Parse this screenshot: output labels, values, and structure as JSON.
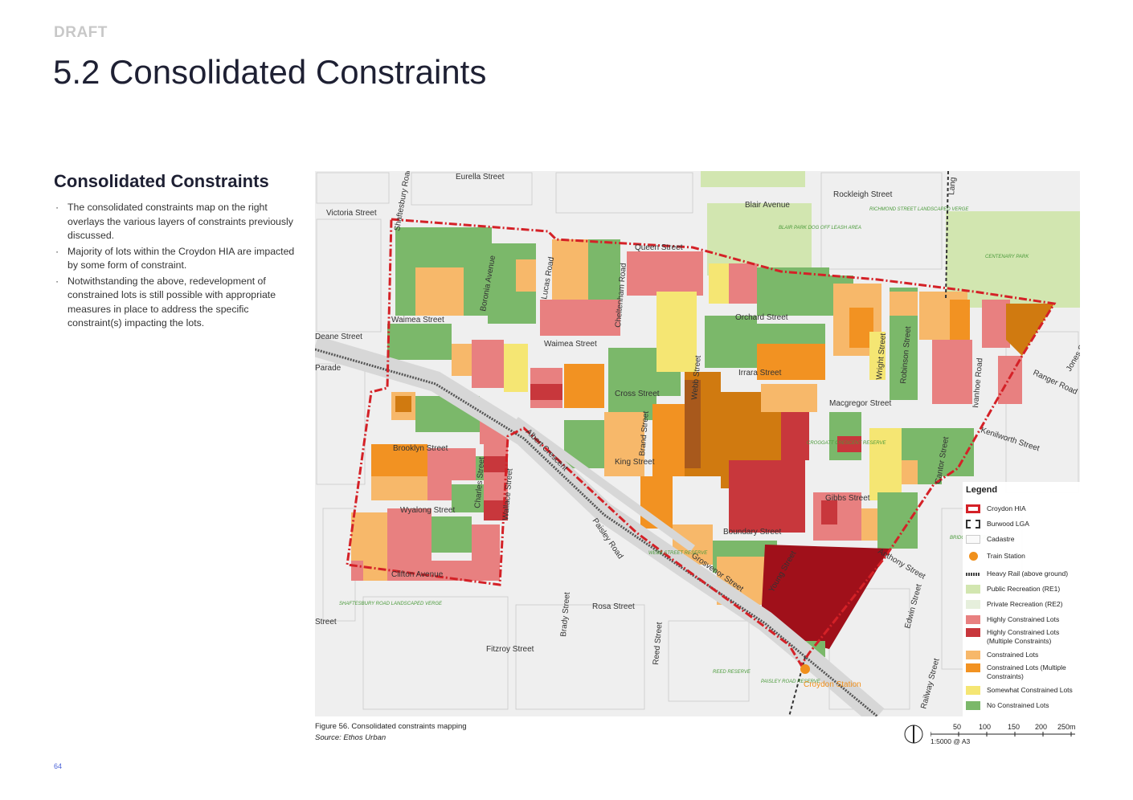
{
  "header": {
    "draft": "DRAFT",
    "title": "5.2 Consolidated Constraints"
  },
  "section": {
    "subtitle": "Consolidated Constraints",
    "bullets": [
      "The consolidated constraints map on the right overlays the various layers of constraints previously discussed.",
      "Majority of lots within the Croydon HIA are impacted by some form of constraint.",
      "Notwithstanding the above, redevelopment of constrained lots is still possible with appropriate measures in place to address the specific constraint(s) impacting the lots."
    ]
  },
  "map": {
    "streets": [
      "Eurella Street",
      "Victoria Street",
      "Shaftesbury Road",
      "Queen Street",
      "Blair Avenue",
      "Rockleigh Street",
      "Boronia Avenue",
      "Lucas Road",
      "Cheltenham Road",
      "Orchard Street",
      "Waimea Street",
      "Waimea Street",
      "Deane Street",
      "Parade",
      "Irrara Street",
      "Webb Street",
      "Wright Street",
      "Robinson Street",
      "Ivanhoe Road",
      "Jones Street",
      "Ranger Road",
      "Cross Street",
      "Macgregor Street",
      "Brand Street",
      "Kenilworth Street",
      "Albert Crescent",
      "King Street",
      "Brooklyn Street",
      "Charles Street",
      "Wallace Street",
      "Cantor Street",
      "Gibbs Street",
      "Wyalong Street",
      "Paisley Road",
      "Boundary Street",
      "Anthony Street",
      "Grosvenor Street",
      "Young Street",
      "Clifton Avenue",
      "Edwin Street",
      "Rosa Street",
      "Brady Street",
      "Reed Street",
      "Fitzroy Street",
      "Street",
      "Railway Street",
      "Lang"
    ],
    "places": [
      "BLAIR PARK DOG OFF LEASH AREA",
      "RICHMOND STREET LANDSCAPED VERGE",
      "CENTENARY PARK",
      "CROGGATT CRESCENT RESERVE",
      "WEBB STREET RESERVE",
      "SHAFTESBURY ROAD LANDSCAPED VERGE",
      "REED RESERVE",
      "PAISLEY ROAD RESERVE",
      "BRIDGE RESERVE"
    ],
    "station_label": "Croydon Station",
    "colors": {
      "hia_boundary": "#d42127",
      "highly": "#e88080",
      "highly_multi": "#c8373c",
      "constrained": "#f7b86a",
      "constrained_multi": "#f29222",
      "somewhat": "#f5e673",
      "none": "#7bb86a",
      "rail": "#555555",
      "station": "#f0901c",
      "recreation": "#d2e6b0",
      "background": "#efefef"
    }
  },
  "legend": {
    "title": "Legend",
    "items": [
      {
        "label": "Croydon HIA",
        "key": "hia"
      },
      {
        "label": "Burwood LGA",
        "key": "lga"
      },
      {
        "label": "Cadastre",
        "key": "cadastre"
      },
      {
        "label": "Train Station",
        "key": "station"
      },
      {
        "label": "Heavy Rail (above ground)",
        "key": "rail"
      },
      {
        "label": "Public Recreation (RE1)",
        "key": "re1"
      },
      {
        "label": "Private Recreation (RE2)",
        "key": "re2"
      },
      {
        "label": "Highly Constrained Lots",
        "key": "highly"
      },
      {
        "label": "Highly Constrained Lots (Multiple Constraints)",
        "key": "highly_multi"
      },
      {
        "label": "Constrained Lots",
        "key": "constrained"
      },
      {
        "label": "Constrained Lots (Multiple Constraints)",
        "key": "constrained_multi"
      },
      {
        "label": "Somewhat Constrained Lots",
        "key": "somewhat"
      },
      {
        "label": "No Constrained Lots",
        "key": "none"
      }
    ]
  },
  "caption": {
    "figure": "Figure 56.    Consolidated constraints mapping",
    "source": "Source: Ethos Urban"
  },
  "scale": {
    "ticks": [
      "50",
      "100",
      "150",
      "200",
      "250m"
    ],
    "ratio": "1:5000 @ A3"
  },
  "page": {
    "number": "64"
  }
}
